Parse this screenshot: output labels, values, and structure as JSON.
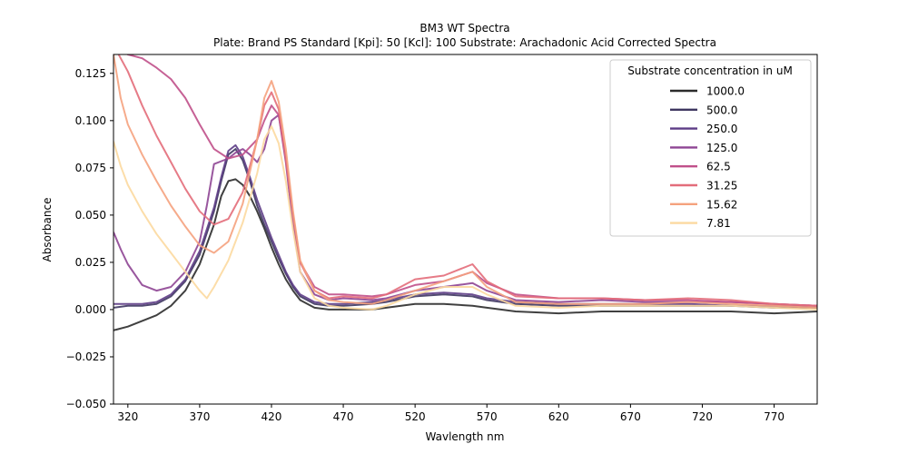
{
  "chart_data": {
    "type": "line",
    "title": "BM3 WT Spectra",
    "subtitle": "Plate: Brand PS Standard  [Kpi]: 50  [Kcl]: 100  Substrate: Arachadonic Acid Corrected Spectra",
    "xlabel": "Wavlength nm",
    "ylabel": "Absorbance",
    "xlim": [
      310,
      800
    ],
    "ylim": [
      -0.05,
      0.135
    ],
    "x_ticks": [
      320,
      370,
      420,
      470,
      520,
      570,
      620,
      670,
      720,
      770
    ],
    "y_ticks": [
      -0.05,
      -0.025,
      0.0,
      0.025,
      0.05,
      0.075,
      0.1,
      0.125
    ],
    "y_tick_labels": [
      "−0.050",
      "−0.025",
      "0.000",
      "0.025",
      "0.050",
      "0.075",
      "0.100",
      "0.125"
    ],
    "grid": false,
    "legend": {
      "title": "Substrate concentration in uM",
      "position": "top-right"
    },
    "series": [
      {
        "name": "1000.0",
        "color": "#2b2b2b",
        "points": [
          [
            310,
            -0.011
          ],
          [
            320,
            -0.009
          ],
          [
            330,
            -0.006
          ],
          [
            340,
            -0.003
          ],
          [
            350,
            0.002
          ],
          [
            360,
            0.01
          ],
          [
            370,
            0.024
          ],
          [
            380,
            0.045
          ],
          [
            385,
            0.06
          ],
          [
            390,
            0.068
          ],
          [
            395,
            0.069
          ],
          [
            400,
            0.066
          ],
          [
            405,
            0.06
          ],
          [
            410,
            0.052
          ],
          [
            415,
            0.043
          ],
          [
            420,
            0.033
          ],
          [
            425,
            0.024
          ],
          [
            430,
            0.016
          ],
          [
            435,
            0.01
          ],
          [
            440,
            0.005
          ],
          [
            450,
            0.001
          ],
          [
            460,
            0.0
          ],
          [
            470,
            0.0
          ],
          [
            490,
            0.0
          ],
          [
            500,
            0.001
          ],
          [
            520,
            0.003
          ],
          [
            540,
            0.003
          ],
          [
            560,
            0.002
          ],
          [
            570,
            0.001
          ],
          [
            590,
            -0.001
          ],
          [
            620,
            -0.002
          ],
          [
            650,
            -0.001
          ],
          [
            680,
            -0.001
          ],
          [
            710,
            -0.001
          ],
          [
            740,
            -0.001
          ],
          [
            770,
            -0.002
          ],
          [
            800,
            -0.001
          ]
        ]
      },
      {
        "name": "500.0",
        "color": "#3e3660",
        "points": [
          [
            310,
            0.001
          ],
          [
            320,
            0.002
          ],
          [
            330,
            0.002
          ],
          [
            340,
            0.003
          ],
          [
            350,
            0.007
          ],
          [
            360,
            0.015
          ],
          [
            370,
            0.029
          ],
          [
            380,
            0.052
          ],
          [
            385,
            0.068
          ],
          [
            390,
            0.082
          ],
          [
            395,
            0.085
          ],
          [
            400,
            0.079
          ],
          [
            405,
            0.068
          ],
          [
            410,
            0.055
          ],
          [
            415,
            0.045
          ],
          [
            420,
            0.036
          ],
          [
            425,
            0.027
          ],
          [
            430,
            0.019
          ],
          [
            435,
            0.012
          ],
          [
            440,
            0.007
          ],
          [
            450,
            0.003
          ],
          [
            460,
            0.002
          ],
          [
            470,
            0.002
          ],
          [
            490,
            0.003
          ],
          [
            500,
            0.004
          ],
          [
            520,
            0.007
          ],
          [
            540,
            0.008
          ],
          [
            560,
            0.007
          ],
          [
            570,
            0.005
          ],
          [
            590,
            0.003
          ],
          [
            620,
            0.002
          ],
          [
            650,
            0.002
          ],
          [
            680,
            0.002
          ],
          [
            710,
            0.002
          ],
          [
            740,
            0.002
          ],
          [
            770,
            0.001
          ],
          [
            800,
            0.001
          ]
        ]
      },
      {
        "name": "250.0",
        "color": "#5d3c86",
        "points": [
          [
            310,
            0.003
          ],
          [
            320,
            0.003
          ],
          [
            330,
            0.003
          ],
          [
            340,
            0.004
          ],
          [
            350,
            0.008
          ],
          [
            360,
            0.016
          ],
          [
            370,
            0.031
          ],
          [
            380,
            0.054
          ],
          [
            385,
            0.07
          ],
          [
            390,
            0.084
          ],
          [
            395,
            0.087
          ],
          [
            400,
            0.081
          ],
          [
            405,
            0.07
          ],
          [
            410,
            0.058
          ],
          [
            415,
            0.048
          ],
          [
            420,
            0.038
          ],
          [
            425,
            0.029
          ],
          [
            430,
            0.02
          ],
          [
            435,
            0.013
          ],
          [
            440,
            0.008
          ],
          [
            450,
            0.004
          ],
          [
            460,
            0.003
          ],
          [
            470,
            0.003
          ],
          [
            490,
            0.004
          ],
          [
            500,
            0.005
          ],
          [
            520,
            0.008
          ],
          [
            540,
            0.009
          ],
          [
            560,
            0.008
          ],
          [
            570,
            0.006
          ],
          [
            590,
            0.004
          ],
          [
            620,
            0.003
          ],
          [
            650,
            0.003
          ],
          [
            680,
            0.003
          ],
          [
            710,
            0.003
          ],
          [
            740,
            0.002
          ],
          [
            770,
            0.002
          ],
          [
            800,
            0.002
          ]
        ]
      },
      {
        "name": "125.0",
        "color": "#8e4594",
        "points": [
          [
            310,
            0.041
          ],
          [
            315,
            0.032
          ],
          [
            320,
            0.024
          ],
          [
            330,
            0.013
          ],
          [
            340,
            0.01
          ],
          [
            350,
            0.012
          ],
          [
            360,
            0.02
          ],
          [
            370,
            0.036
          ],
          [
            375,
            0.055
          ],
          [
            380,
            0.077
          ],
          [
            390,
            0.08
          ],
          [
            395,
            0.083
          ],
          [
            400,
            0.085
          ],
          [
            405,
            0.082
          ],
          [
            410,
            0.078
          ],
          [
            415,
            0.085
          ],
          [
            420,
            0.1
          ],
          [
            425,
            0.103
          ],
          [
            430,
            0.078
          ],
          [
            435,
            0.045
          ],
          [
            440,
            0.02
          ],
          [
            450,
            0.008
          ],
          [
            460,
            0.005
          ],
          [
            470,
            0.006
          ],
          [
            490,
            0.005
          ],
          [
            500,
            0.006
          ],
          [
            520,
            0.01
          ],
          [
            540,
            0.012
          ],
          [
            560,
            0.014
          ],
          [
            570,
            0.01
          ],
          [
            590,
            0.005
          ],
          [
            620,
            0.004
          ],
          [
            650,
            0.005
          ],
          [
            680,
            0.004
          ],
          [
            710,
            0.004
          ],
          [
            740,
            0.004
          ],
          [
            770,
            0.003
          ],
          [
            800,
            0.002
          ]
        ]
      },
      {
        "name": "62.5",
        "color": "#c0508a",
        "points": [
          [
            310,
            0.14
          ],
          [
            320,
            0.135
          ],
          [
            330,
            0.133
          ],
          [
            340,
            0.128
          ],
          [
            350,
            0.122
          ],
          [
            360,
            0.112
          ],
          [
            370,
            0.098
          ],
          [
            380,
            0.085
          ],
          [
            390,
            0.08
          ],
          [
            400,
            0.082
          ],
          [
            410,
            0.09
          ],
          [
            415,
            0.1
          ],
          [
            420,
            0.108
          ],
          [
            425,
            0.103
          ],
          [
            430,
            0.08
          ],
          [
            435,
            0.05
          ],
          [
            440,
            0.025
          ],
          [
            450,
            0.012
          ],
          [
            460,
            0.008
          ],
          [
            470,
            0.008
          ],
          [
            490,
            0.007
          ],
          [
            500,
            0.008
          ],
          [
            520,
            0.013
          ],
          [
            540,
            0.015
          ],
          [
            560,
            0.02
          ],
          [
            570,
            0.014
          ],
          [
            590,
            0.008
          ],
          [
            620,
            0.006
          ],
          [
            650,
            0.006
          ],
          [
            680,
            0.005
          ],
          [
            710,
            0.005
          ],
          [
            740,
            0.004
          ],
          [
            770,
            0.003
          ],
          [
            800,
            0.002
          ]
        ]
      },
      {
        "name": "31.25",
        "color": "#e36d7a",
        "points": [
          [
            310,
            0.14
          ],
          [
            320,
            0.126
          ],
          [
            330,
            0.108
          ],
          [
            340,
            0.092
          ],
          [
            350,
            0.078
          ],
          [
            360,
            0.064
          ],
          [
            370,
            0.052
          ],
          [
            380,
            0.045
          ],
          [
            390,
            0.048
          ],
          [
            400,
            0.062
          ],
          [
            410,
            0.09
          ],
          [
            415,
            0.108
          ],
          [
            420,
            0.115
          ],
          [
            425,
            0.106
          ],
          [
            430,
            0.08
          ],
          [
            435,
            0.05
          ],
          [
            440,
            0.025
          ],
          [
            450,
            0.01
          ],
          [
            460,
            0.006
          ],
          [
            470,
            0.007
          ],
          [
            490,
            0.006
          ],
          [
            500,
            0.008
          ],
          [
            520,
            0.016
          ],
          [
            540,
            0.018
          ],
          [
            560,
            0.024
          ],
          [
            570,
            0.015
          ],
          [
            590,
            0.007
          ],
          [
            620,
            0.006
          ],
          [
            650,
            0.006
          ],
          [
            680,
            0.005
          ],
          [
            710,
            0.006
          ],
          [
            740,
            0.005
          ],
          [
            770,
            0.003
          ],
          [
            800,
            0.002
          ]
        ]
      },
      {
        "name": "15.62",
        "color": "#f5a27e",
        "points": [
          [
            310,
            0.135
          ],
          [
            315,
            0.112
          ],
          [
            320,
            0.098
          ],
          [
            330,
            0.082
          ],
          [
            340,
            0.068
          ],
          [
            350,
            0.055
          ],
          [
            360,
            0.044
          ],
          [
            370,
            0.034
          ],
          [
            380,
            0.03
          ],
          [
            390,
            0.036
          ],
          [
            400,
            0.056
          ],
          [
            410,
            0.09
          ],
          [
            415,
            0.112
          ],
          [
            420,
            0.121
          ],
          [
            425,
            0.11
          ],
          [
            430,
            0.085
          ],
          [
            435,
            0.052
          ],
          [
            440,
            0.026
          ],
          [
            450,
            0.01
          ],
          [
            460,
            0.005
          ],
          [
            470,
            0.004
          ],
          [
            490,
            0.003
          ],
          [
            500,
            0.005
          ],
          [
            520,
            0.01
          ],
          [
            540,
            0.015
          ],
          [
            560,
            0.02
          ],
          [
            570,
            0.012
          ],
          [
            590,
            0.004
          ],
          [
            620,
            0.003
          ],
          [
            650,
            0.003
          ],
          [
            680,
            0.003
          ],
          [
            710,
            0.004
          ],
          [
            740,
            0.003
          ],
          [
            770,
            0.002
          ],
          [
            800,
            0.001
          ]
        ]
      },
      {
        "name": "7.81",
        "color": "#fcd9a0",
        "points": [
          [
            310,
            0.089
          ],
          [
            315,
            0.076
          ],
          [
            320,
            0.066
          ],
          [
            330,
            0.052
          ],
          [
            340,
            0.04
          ],
          [
            350,
            0.03
          ],
          [
            360,
            0.02
          ],
          [
            370,
            0.01
          ],
          [
            375,
            0.006
          ],
          [
            380,
            0.012
          ],
          [
            390,
            0.026
          ],
          [
            400,
            0.046
          ],
          [
            410,
            0.072
          ],
          [
            415,
            0.09
          ],
          [
            420,
            0.097
          ],
          [
            425,
            0.088
          ],
          [
            430,
            0.068
          ],
          [
            435,
            0.042
          ],
          [
            440,
            0.02
          ],
          [
            450,
            0.006
          ],
          [
            460,
            0.002
          ],
          [
            470,
            0.001
          ],
          [
            490,
            0.0
          ],
          [
            500,
            0.002
          ],
          [
            520,
            0.008
          ],
          [
            540,
            0.012
          ],
          [
            560,
            0.012
          ],
          [
            570,
            0.008
          ],
          [
            590,
            0.002
          ],
          [
            620,
            0.001
          ],
          [
            650,
            0.002
          ],
          [
            680,
            0.002
          ],
          [
            710,
            0.002
          ],
          [
            740,
            0.002
          ],
          [
            770,
            0.001
          ],
          [
            800,
            0.0
          ]
        ]
      }
    ]
  }
}
